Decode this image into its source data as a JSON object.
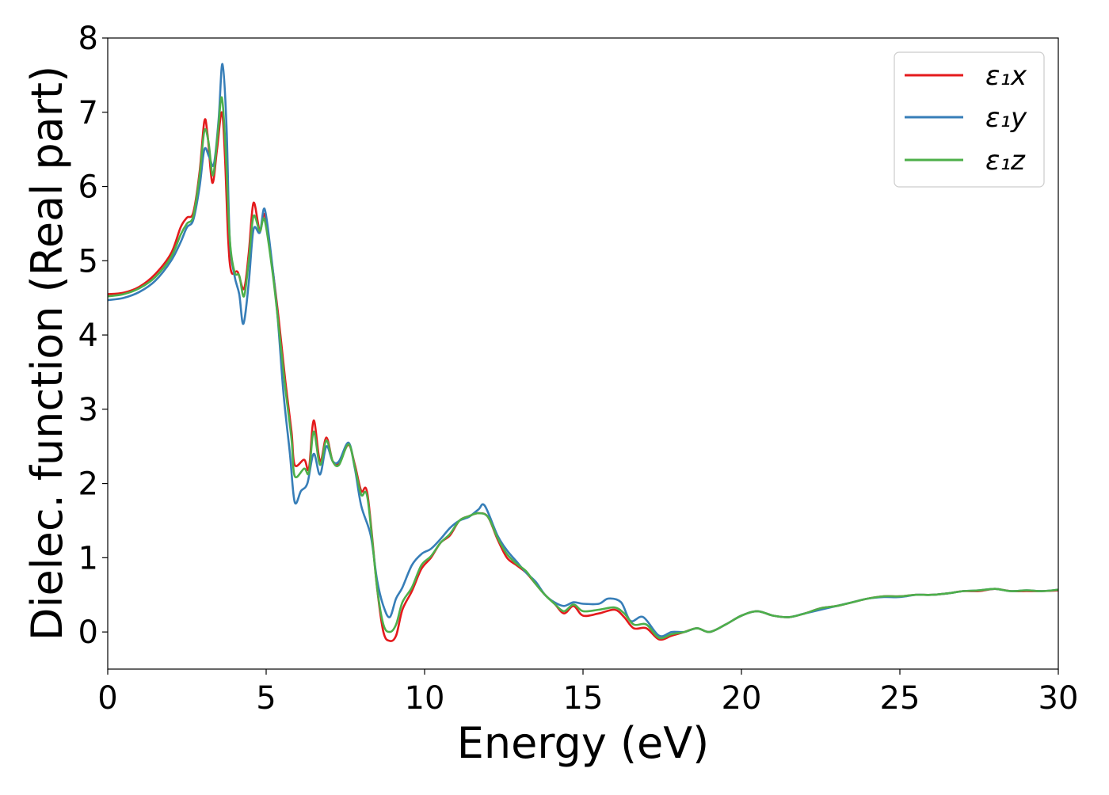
{
  "chart_data": {
    "type": "line",
    "title": "",
    "xlabel": "Energy (eV)",
    "ylabel": "Dielec. function (Real part)",
    "xlim": [
      0,
      30
    ],
    "ylim": [
      -0.5,
      8
    ],
    "xticks": [
      "0",
      "5",
      "10",
      "15",
      "20",
      "25",
      "30"
    ],
    "yticks": [
      "0",
      "1",
      "2",
      "3",
      "4",
      "5",
      "6",
      "7",
      "8"
    ],
    "grid": false,
    "legend_position": "top-right",
    "series": [
      {
        "name": "ε₁x",
        "color": "#e41a1c",
        "points": [
          [
            0,
            4.55
          ],
          [
            0.5,
            4.57
          ],
          [
            1.0,
            4.65
          ],
          [
            1.5,
            4.82
          ],
          [
            2.0,
            5.1
          ],
          [
            2.3,
            5.45
          ],
          [
            2.5,
            5.58
          ],
          [
            2.7,
            5.65
          ],
          [
            2.9,
            6.2
          ],
          [
            3.05,
            6.88
          ],
          [
            3.15,
            6.7
          ],
          [
            3.3,
            6.05
          ],
          [
            3.45,
            6.5
          ],
          [
            3.6,
            7.0
          ],
          [
            3.7,
            6.4
          ],
          [
            3.8,
            5.3
          ],
          [
            3.9,
            4.85
          ],
          [
            4.1,
            4.85
          ],
          [
            4.3,
            4.62
          ],
          [
            4.45,
            5.1
          ],
          [
            4.6,
            5.78
          ],
          [
            4.8,
            5.4
          ],
          [
            4.95,
            5.62
          ],
          [
            5.2,
            4.9
          ],
          [
            5.4,
            4.2
          ],
          [
            5.6,
            3.4
          ],
          [
            5.8,
            2.7
          ],
          [
            5.9,
            2.25
          ],
          [
            6.2,
            2.32
          ],
          [
            6.35,
            2.2
          ],
          [
            6.5,
            2.85
          ],
          [
            6.7,
            2.3
          ],
          [
            6.9,
            2.62
          ],
          [
            7.1,
            2.3
          ],
          [
            7.3,
            2.28
          ],
          [
            7.6,
            2.52
          ],
          [
            7.8,
            2.25
          ],
          [
            8.0,
            1.9
          ],
          [
            8.2,
            1.85
          ],
          [
            8.5,
            0.6
          ],
          [
            8.7,
            0.0
          ],
          [
            8.9,
            -0.12
          ],
          [
            9.1,
            -0.05
          ],
          [
            9.3,
            0.3
          ],
          [
            9.6,
            0.55
          ],
          [
            9.9,
            0.85
          ],
          [
            10.2,
            1.0
          ],
          [
            10.5,
            1.2
          ],
          [
            10.8,
            1.3
          ],
          [
            11.1,
            1.5
          ],
          [
            11.4,
            1.56
          ],
          [
            11.7,
            1.6
          ],
          [
            12.0,
            1.55
          ],
          [
            12.3,
            1.25
          ],
          [
            12.6,
            1.0
          ],
          [
            12.9,
            0.9
          ],
          [
            13.2,
            0.8
          ],
          [
            13.5,
            0.65
          ],
          [
            13.8,
            0.5
          ],
          [
            14.1,
            0.38
          ],
          [
            14.4,
            0.25
          ],
          [
            14.7,
            0.35
          ],
          [
            15.0,
            0.22
          ],
          [
            15.5,
            0.25
          ],
          [
            16.0,
            0.3
          ],
          [
            16.3,
            0.2
          ],
          [
            16.6,
            0.05
          ],
          [
            17.0,
            0.05
          ],
          [
            17.4,
            -0.1
          ],
          [
            17.8,
            -0.05
          ],
          [
            18.2,
            0.0
          ],
          [
            18.6,
            0.05
          ],
          [
            19.0,
            0.0
          ],
          [
            19.5,
            0.1
          ],
          [
            20.0,
            0.22
          ],
          [
            20.5,
            0.28
          ],
          [
            21.0,
            0.22
          ],
          [
            21.5,
            0.2
          ],
          [
            22.0,
            0.25
          ],
          [
            22.5,
            0.32
          ],
          [
            23.0,
            0.35
          ],
          [
            23.5,
            0.4
          ],
          [
            24.0,
            0.45
          ],
          [
            24.5,
            0.48
          ],
          [
            25.0,
            0.48
          ],
          [
            25.5,
            0.5
          ],
          [
            26.0,
            0.5
          ],
          [
            26.5,
            0.52
          ],
          [
            27.0,
            0.55
          ],
          [
            27.5,
            0.55
          ],
          [
            28.0,
            0.58
          ],
          [
            28.5,
            0.55
          ],
          [
            29.0,
            0.55
          ],
          [
            29.5,
            0.55
          ],
          [
            30.0,
            0.56
          ]
        ]
      },
      {
        "name": "ε₁y",
        "color": "#377eb8",
        "points": [
          [
            0,
            4.47
          ],
          [
            0.5,
            4.5
          ],
          [
            1.0,
            4.58
          ],
          [
            1.5,
            4.73
          ],
          [
            2.0,
            5.0
          ],
          [
            2.3,
            5.25
          ],
          [
            2.5,
            5.45
          ],
          [
            2.7,
            5.55
          ],
          [
            2.9,
            6.0
          ],
          [
            3.05,
            6.5
          ],
          [
            3.2,
            6.4
          ],
          [
            3.35,
            6.3
          ],
          [
            3.5,
            6.9
          ],
          [
            3.62,
            7.65
          ],
          [
            3.75,
            6.8
          ],
          [
            3.85,
            5.3
          ],
          [
            4.0,
            4.8
          ],
          [
            4.15,
            4.55
          ],
          [
            4.28,
            4.15
          ],
          [
            4.45,
            4.7
          ],
          [
            4.6,
            5.42
          ],
          [
            4.8,
            5.38
          ],
          [
            4.95,
            5.7
          ],
          [
            5.15,
            5.1
          ],
          [
            5.35,
            4.3
          ],
          [
            5.55,
            3.2
          ],
          [
            5.75,
            2.4
          ],
          [
            5.9,
            1.75
          ],
          [
            6.1,
            1.9
          ],
          [
            6.3,
            2.0
          ],
          [
            6.5,
            2.4
          ],
          [
            6.7,
            2.12
          ],
          [
            6.9,
            2.5
          ],
          [
            7.1,
            2.3
          ],
          [
            7.3,
            2.3
          ],
          [
            7.6,
            2.55
          ],
          [
            7.8,
            2.2
          ],
          [
            8.0,
            1.7
          ],
          [
            8.3,
            1.3
          ],
          [
            8.5,
            0.7
          ],
          [
            8.7,
            0.35
          ],
          [
            8.9,
            0.2
          ],
          [
            9.1,
            0.45
          ],
          [
            9.3,
            0.6
          ],
          [
            9.6,
            0.9
          ],
          [
            9.9,
            1.05
          ],
          [
            10.2,
            1.12
          ],
          [
            10.5,
            1.25
          ],
          [
            10.8,
            1.4
          ],
          [
            11.1,
            1.5
          ],
          [
            11.4,
            1.55
          ],
          [
            11.7,
            1.65
          ],
          [
            11.9,
            1.7
          ],
          [
            12.3,
            1.3
          ],
          [
            12.6,
            1.1
          ],
          [
            12.9,
            0.95
          ],
          [
            13.2,
            0.8
          ],
          [
            13.5,
            0.68
          ],
          [
            13.8,
            0.5
          ],
          [
            14.1,
            0.4
          ],
          [
            14.4,
            0.35
          ],
          [
            14.7,
            0.4
          ],
          [
            15.0,
            0.38
          ],
          [
            15.5,
            0.38
          ],
          [
            15.8,
            0.45
          ],
          [
            16.2,
            0.4
          ],
          [
            16.5,
            0.15
          ],
          [
            16.9,
            0.2
          ],
          [
            17.4,
            -0.05
          ],
          [
            17.8,
            0.0
          ],
          [
            18.2,
            0.0
          ],
          [
            18.6,
            0.05
          ],
          [
            19.0,
            0.0
          ],
          [
            19.5,
            0.1
          ],
          [
            20.0,
            0.22
          ],
          [
            20.5,
            0.28
          ],
          [
            21.0,
            0.22
          ],
          [
            21.5,
            0.2
          ],
          [
            22.0,
            0.25
          ],
          [
            22.5,
            0.3
          ],
          [
            23.0,
            0.35
          ],
          [
            23.5,
            0.4
          ],
          [
            24.0,
            0.45
          ],
          [
            24.5,
            0.47
          ],
          [
            25.0,
            0.47
          ],
          [
            25.5,
            0.5
          ],
          [
            26.0,
            0.5
          ],
          [
            26.5,
            0.52
          ],
          [
            27.0,
            0.55
          ],
          [
            27.5,
            0.56
          ],
          [
            28.0,
            0.58
          ],
          [
            28.5,
            0.55
          ],
          [
            29.0,
            0.56
          ],
          [
            29.5,
            0.55
          ],
          [
            30.0,
            0.57
          ]
        ]
      },
      {
        "name": "ε₁z",
        "color": "#4daf4a",
        "points": [
          [
            0,
            4.52
          ],
          [
            0.5,
            4.55
          ],
          [
            1.0,
            4.63
          ],
          [
            1.5,
            4.78
          ],
          [
            2.0,
            5.05
          ],
          [
            2.3,
            5.35
          ],
          [
            2.5,
            5.5
          ],
          [
            2.7,
            5.6
          ],
          [
            2.9,
            6.15
          ],
          [
            3.05,
            6.75
          ],
          [
            3.18,
            6.6
          ],
          [
            3.32,
            6.15
          ],
          [
            3.47,
            6.7
          ],
          [
            3.6,
            7.2
          ],
          [
            3.72,
            6.5
          ],
          [
            3.85,
            5.3
          ],
          [
            4.0,
            4.85
          ],
          [
            4.15,
            4.8
          ],
          [
            4.3,
            4.52
          ],
          [
            4.45,
            5.0
          ],
          [
            4.6,
            5.6
          ],
          [
            4.8,
            5.4
          ],
          [
            4.95,
            5.55
          ],
          [
            5.2,
            4.85
          ],
          [
            5.4,
            4.1
          ],
          [
            5.6,
            3.3
          ],
          [
            5.8,
            2.6
          ],
          [
            5.9,
            2.1
          ],
          [
            6.2,
            2.2
          ],
          [
            6.35,
            2.15
          ],
          [
            6.5,
            2.7
          ],
          [
            6.7,
            2.25
          ],
          [
            6.9,
            2.58
          ],
          [
            7.1,
            2.3
          ],
          [
            7.3,
            2.25
          ],
          [
            7.6,
            2.53
          ],
          [
            7.8,
            2.22
          ],
          [
            8.0,
            1.85
          ],
          [
            8.2,
            1.8
          ],
          [
            8.5,
            0.6
          ],
          [
            8.7,
            0.1
          ],
          [
            8.9,
            0.0
          ],
          [
            9.1,
            0.1
          ],
          [
            9.3,
            0.4
          ],
          [
            9.6,
            0.6
          ],
          [
            9.9,
            0.9
          ],
          [
            10.2,
            1.02
          ],
          [
            10.5,
            1.2
          ],
          [
            10.8,
            1.32
          ],
          [
            11.1,
            1.5
          ],
          [
            11.4,
            1.56
          ],
          [
            11.7,
            1.6
          ],
          [
            12.0,
            1.55
          ],
          [
            12.3,
            1.27
          ],
          [
            12.6,
            1.05
          ],
          [
            12.9,
            0.92
          ],
          [
            13.2,
            0.82
          ],
          [
            13.5,
            0.65
          ],
          [
            13.8,
            0.5
          ],
          [
            14.1,
            0.38
          ],
          [
            14.4,
            0.28
          ],
          [
            14.7,
            0.37
          ],
          [
            15.0,
            0.28
          ],
          [
            15.5,
            0.3
          ],
          [
            16.0,
            0.33
          ],
          [
            16.3,
            0.25
          ],
          [
            16.6,
            0.1
          ],
          [
            17.0,
            0.1
          ],
          [
            17.4,
            -0.08
          ],
          [
            17.8,
            -0.03
          ],
          [
            18.2,
            0.0
          ],
          [
            18.6,
            0.05
          ],
          [
            19.0,
            0.0
          ],
          [
            19.5,
            0.1
          ],
          [
            20.0,
            0.22
          ],
          [
            20.5,
            0.28
          ],
          [
            21.0,
            0.22
          ],
          [
            21.5,
            0.2
          ],
          [
            22.0,
            0.25
          ],
          [
            22.5,
            0.32
          ],
          [
            23.0,
            0.35
          ],
          [
            23.5,
            0.4
          ],
          [
            24.0,
            0.45
          ],
          [
            24.5,
            0.48
          ],
          [
            25.0,
            0.48
          ],
          [
            25.5,
            0.5
          ],
          [
            26.0,
            0.5
          ],
          [
            26.5,
            0.52
          ],
          [
            27.0,
            0.55
          ],
          [
            27.5,
            0.56
          ],
          [
            28.0,
            0.58
          ],
          [
            28.5,
            0.55
          ],
          [
            29.0,
            0.56
          ],
          [
            29.5,
            0.55
          ],
          [
            30.0,
            0.57
          ]
        ]
      }
    ]
  }
}
